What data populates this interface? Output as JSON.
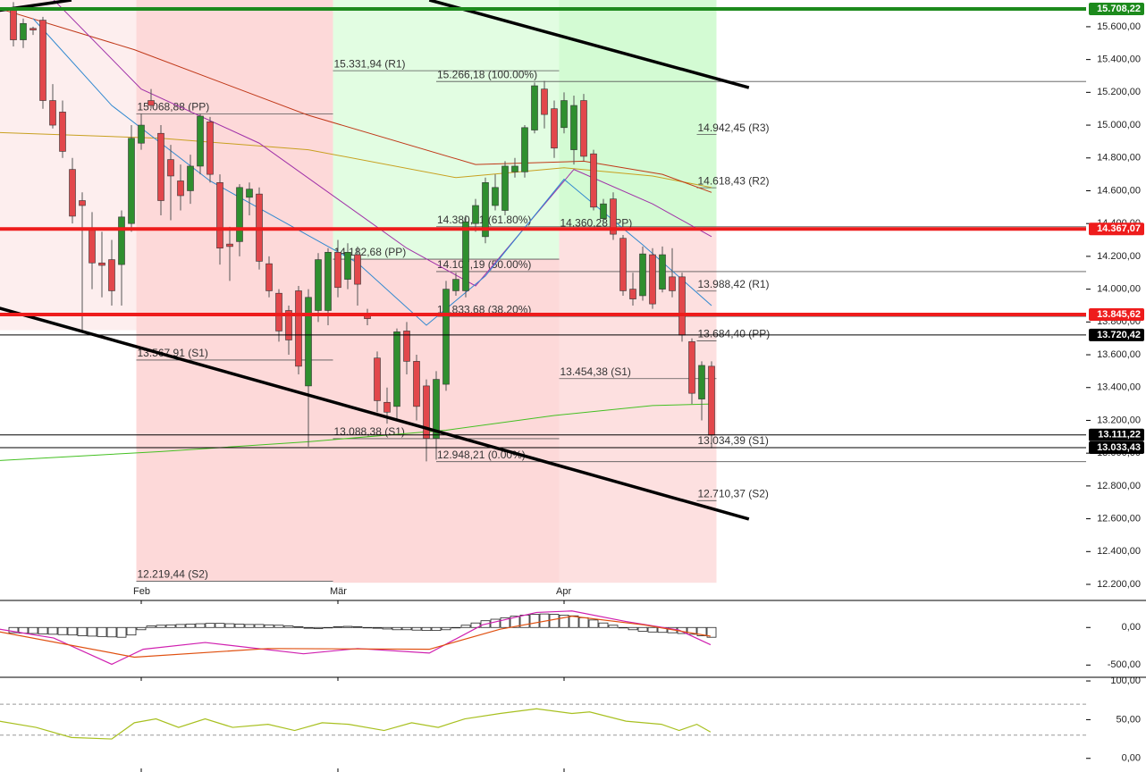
{
  "chart_data": [
    {
      "type": "candlestick",
      "categories": [
        null,
        null,
        null,
        null,
        null,
        null,
        null,
        null,
        null,
        null,
        null,
        null,
        null,
        "Feb",
        null,
        null,
        null,
        null,
        null,
        null,
        null,
        null,
        null,
        null,
        null,
        null,
        null,
        null,
        null,
        null,
        null,
        null,
        null,
        "Mär",
        null,
        null,
        null,
        null,
        null,
        null,
        null,
        null,
        null,
        null,
        null,
        null,
        null,
        null,
        null,
        null,
        null,
        null,
        null,
        null,
        null,
        null,
        "Apr",
        null,
        null,
        null,
        null,
        null,
        null,
        null,
        null,
        null,
        null,
        null,
        null,
        null,
        null,
        null
      ],
      "open": [
        15700,
        15520,
        15590,
        15640,
        15150,
        15080,
        14730,
        14540,
        14370,
        14160,
        14180,
        14150,
        14400,
        14890,
        15150,
        14950,
        14790,
        14660,
        14600,
        14750,
        15020,
        14650,
        14275,
        14290,
        14560,
        14580,
        14155,
        13975,
        13870,
        13990,
        13410,
        13870,
        13870,
        14225,
        14060,
        14210,
        13845,
        13580,
        13310,
        13285,
        13745,
        13560,
        13410,
        13090,
        13420,
        13990,
        13990,
        14400,
        14320,
        14510,
        14480,
        14715,
        14715,
        14970,
        15220,
        15100,
        14985,
        14850,
        15150,
        14825,
        14430,
        14550,
        14310,
        14000,
        13960,
        14210,
        14000,
        14075,
        14075,
        13680,
        13330,
        13530
      ],
      "high": [
        15750,
        15650,
        15600,
        15660,
        15250,
        15150,
        14800,
        14590,
        14470,
        14350,
        14300,
        14480,
        15000,
        15070,
        15220,
        15000,
        14880,
        14760,
        14820,
        15070,
        15050,
        14700,
        14380,
        14640,
        14650,
        14620,
        14200,
        14000,
        13900,
        14020,
        14000,
        14220,
        14250,
        14300,
        14280,
        14260,
        13880,
        13620,
        13400,
        13760,
        13800,
        13600,
        13450,
        13500,
        14050,
        14100,
        14450,
        14550,
        14680,
        14700,
        14780,
        14800,
        15000,
        15260,
        15270,
        15150,
        15200,
        15180,
        15190,
        14850,
        14550,
        14590,
        14330,
        14100,
        14260,
        14250,
        14260,
        14250,
        14100,
        13700,
        13560,
        13560
      ],
      "low": [
        15480,
        15470,
        15550,
        15100,
        14980,
        14800,
        14400,
        13750,
        14000,
        13950,
        13900,
        13900,
        14350,
        14850,
        15100,
        14450,
        14420,
        14480,
        14520,
        14700,
        14650,
        14150,
        14050,
        14200,
        14450,
        14120,
        13950,
        13680,
        13600,
        13480,
        13040,
        13800,
        13780,
        13950,
        14000,
        13900,
        13780,
        13250,
        13180,
        13200,
        13480,
        13200,
        12950,
        12960,
        13380,
        13960,
        13950,
        14350,
        14280,
        14480,
        14450,
        14680,
        14680,
        14950,
        14980,
        14800,
        14950,
        14760,
        14780,
        14480,
        14400,
        14300,
        13960,
        13900,
        13930,
        13880,
        13980,
        13950,
        13680,
        13300,
        13200,
        13030
      ],
      "close": [
        15520,
        15620,
        15580,
        15150,
        15000,
        14840,
        14445,
        14510,
        14160,
        14145,
        13990,
        14440,
        14920,
        15000,
        15120,
        14540,
        14690,
        14570,
        14750,
        15055,
        14700,
        14250,
        14260,
        14620,
        14610,
        14170,
        13990,
        13745,
        13690,
        13530,
        13950,
        14180,
        14225,
        14010,
        14225,
        14030,
        13820,
        13320,
        13250,
        13740,
        13560,
        13285,
        13090,
        13450,
        14000,
        14060,
        14410,
        14510,
        14650,
        14620,
        14750,
        14750,
        14985,
        15240,
        15065,
        14860,
        15150,
        15120,
        14810,
        14500,
        14520,
        14335,
        13990,
        13940,
        14215,
        13910,
        14210,
        13990,
        13720,
        13365,
        13535,
        13110
      ],
      "up_color": "#2f8f2f",
      "down_color": "#e2474b",
      "ylim": [
        12102,
        15763
      ],
      "yticks": [
        {
          "value": 12200,
          "label": "12.200,00"
        },
        {
          "value": 12400,
          "label": "12.400,00"
        },
        {
          "value": 12600,
          "label": "12.600,00"
        },
        {
          "value": 12800,
          "label": "12.800,00"
        },
        {
          "value": 13000,
          "label": "13.000,00"
        },
        {
          "value": 13200,
          "label": "13.200,00"
        },
        {
          "value": 13400,
          "label": "13.400,00"
        },
        {
          "value": 13600,
          "label": "13.600,00"
        },
        {
          "value": 13800,
          "label": "13.800,00"
        },
        {
          "value": 14000,
          "label": "14.000,00"
        },
        {
          "value": 14200,
          "label": "14.200,00"
        },
        {
          "value": 14400,
          "label": "14.400,00"
        },
        {
          "value": 14600,
          "label": "14.600,00"
        },
        {
          "value": 14800,
          "label": "14.800,00"
        },
        {
          "value": 15000,
          "label": "15.000,00"
        },
        {
          "value": 15200,
          "label": "15.200,00"
        },
        {
          "value": 15400,
          "label": "15.400,00"
        },
        {
          "value": 15600,
          "label": "15.600,00"
        }
      ],
      "zones": [
        {
          "x": [
            -1.5,
            12.5
          ],
          "lo": 13750,
          "hi": 15763,
          "color": "#fdeeee"
        },
        {
          "x": [
            12.5,
            32.5
          ],
          "lo": 12219.44,
          "hi": 15763,
          "color": "#fdd9d9"
        },
        {
          "x": [
            32.5,
            55.5
          ],
          "lo": 14182.68,
          "hi": 15763,
          "color": "#e2fde2"
        },
        {
          "x": [
            32.5,
            55.5
          ],
          "lo": 12210,
          "hi": 14182.68,
          "color": "#fdd9d9"
        },
        {
          "x": [
            55.5,
            71.5
          ],
          "lo": 14360.28,
          "hi": 15763,
          "color": "#d3fbd3"
        },
        {
          "x": [
            55.5,
            71.5
          ],
          "lo": 12210,
          "hi": 14360.28,
          "color": "#fde0e0"
        }
      ],
      "levels": [
        {
          "value": 15331.94,
          "label": "15.331,94 (R1)",
          "x": [
            32.5,
            55.5
          ]
        },
        {
          "value": 15266.18,
          "label": "15.266,18 (100.00%)",
          "x": [
            43,
            109.1
          ]
        },
        {
          "value": 15068.88,
          "label": "15.068,88 (PP)",
          "x": [
            12.5,
            32.5
          ]
        },
        {
          "value": 14942.45,
          "label": "14.942,45 (R3)",
          "x": [
            69.5,
            71.5
          ]
        },
        {
          "value": 14618.43,
          "label": "14.618,43 (R2)",
          "x": [
            69.5,
            71.5
          ]
        },
        {
          "value": 14380.71,
          "label": "14.380,71 (61.80%)",
          "x": [
            43,
            109.1
          ]
        },
        {
          "value": 14360.28,
          "label": "14.360,28 (PP)",
          "x": [
            55.5,
            71.5
          ]
        },
        {
          "value": 14182.68,
          "label": "14.182,68 (PP)",
          "x": [
            32.5,
            55.5
          ]
        },
        {
          "value": 14107.19,
          "label": "14.107,19 (50.00%)",
          "x": [
            43,
            109.1
          ]
        },
        {
          "value": 13988.42,
          "label": "13.988,42 (R1)",
          "x": [
            69.5,
            71.5
          ]
        },
        {
          "value": 13833.68,
          "label": "13.833,68 (38.20%)",
          "x": [
            43,
            109.1
          ]
        },
        {
          "value": 13684.4,
          "label": "13.684,40 (PP)",
          "x": [
            69.5,
            71.5
          ]
        },
        {
          "value": 13567.91,
          "label": "13.567,91 (S1)",
          "x": [
            12.5,
            32.5
          ]
        },
        {
          "value": 13454.38,
          "label": "13.454,38 (S1)",
          "x": [
            55.5,
            71.5
          ]
        },
        {
          "value": 13088.38,
          "label": "13.088,38 (S1)",
          "x": [
            32.5,
            55.5
          ]
        },
        {
          "value": 13034.39,
          "label": "13.034,39 (S1)",
          "x": [
            69.5,
            71.5
          ]
        },
        {
          "value": 12948.21,
          "label": "12.948,21 (0.00%)",
          "x": [
            43,
            109.1
          ]
        },
        {
          "value": 12710.37,
          "label": "12.710,37 (S2)",
          "x": [
            69.5,
            71.5
          ]
        },
        {
          "value": 12219.44,
          "label": "12.219,44 (S2)",
          "x": [
            12.5,
            32.5
          ]
        }
      ],
      "markers": [
        {
          "value": 15708.22,
          "label": "15.708,22",
          "color": "#1c8a1c"
        },
        {
          "value": 14367.07,
          "label": "14.367,07",
          "color": "#ee1c1c"
        },
        {
          "value": 13845.62,
          "label": "13.845,62",
          "color": "#ee1c1c"
        },
        {
          "value": 13720.42,
          "label": "13.720,42",
          "color": "#000000"
        },
        {
          "value": 13111.22,
          "label": "13.111,22",
          "color": "#000000"
        },
        {
          "value": 13033.43,
          "label": "13.033,43",
          "color": "#000000"
        }
      ],
      "trendlines": [
        {
          "x": [
            42.3,
            74.8
          ],
          "values": [
            15763,
            15229
          ]
        },
        {
          "x": [
            -1.4,
            74.8
          ],
          "values": [
            13884,
            12598
          ]
        },
        {
          "x": [
            -1.4,
            5.9
          ],
          "values": [
            15700,
            15763
          ]
        }
      ],
      "overlays": [
        {
          "color": "#44c022",
          "x": [
            -1.4,
            15,
            30,
            44,
            55,
            65,
            71
          ],
          "values": [
            12955,
            13010,
            13070,
            13140,
            13230,
            13290,
            13300
          ]
        },
        {
          "color": "#c8a020",
          "x": [
            -1.4,
            15,
            30,
            45,
            56,
            65,
            71
          ],
          "values": [
            14955,
            14920,
            14850,
            14680,
            14740,
            14690,
            14620
          ]
        },
        {
          "color": "#c03818",
          "x": [
            -1.4,
            12.3,
            30,
            47,
            58,
            66,
            71
          ],
          "values": [
            15710,
            15460,
            15060,
            14760,
            14780,
            14700,
            14590
          ]
        },
        {
          "color": "#a030a8",
          "x": [
            4,
            13,
            25,
            40,
            47,
            57,
            65,
            71
          ],
          "values": [
            15770,
            15220,
            14890,
            14250,
            14020,
            14730,
            14520,
            14320
          ]
        },
        {
          "color": "#3088d0",
          "x": [
            2,
            10,
            20,
            35,
            42,
            48,
            56,
            64,
            71
          ],
          "values": [
            15650,
            15120,
            14660,
            14160,
            13780,
            14080,
            14670,
            14270,
            13900
          ]
        }
      ]
    },
    {
      "type": "bar",
      "values": [
        -70,
        -75,
        -80,
        -85,
        -90,
        -95,
        -100,
        -110,
        -115,
        -120,
        -125,
        -130,
        -100,
        -30,
        20,
        30,
        35,
        40,
        45,
        50,
        55,
        55,
        50,
        45,
        40,
        40,
        35,
        30,
        20,
        10,
        -10,
        -15,
        -5,
        10,
        15,
        10,
        0,
        -10,
        -20,
        -30,
        -30,
        -35,
        -40,
        -40,
        -30,
        0,
        30,
        60,
        90,
        110,
        130,
        150,
        165,
        175,
        180,
        175,
        165,
        155,
        130,
        100,
        60,
        30,
        0,
        -30,
        -50,
        -60,
        -65,
        -70,
        -80,
        -90,
        -110,
        -130
      ],
      "ylim": [
        -663,
        360
      ],
      "yticks": [
        {
          "value": -500,
          "label": "-500,00"
        },
        {
          "value": 0,
          "label": "0,00"
        }
      ],
      "series": [
        {
          "color": "#d020b0",
          "x": [
            -1.4,
            4.1,
            10,
            13.2,
            19.5,
            29.5,
            35,
            42.3,
            47.7,
            53.2,
            56.8,
            62.3,
            67.7,
            70.9
          ],
          "values": [
            -23,
            -140,
            -490,
            -290,
            -200,
            -350,
            -280,
            -340,
            35,
            200,
            220,
            80,
            -35,
            -230
          ]
        },
        {
          "color": "#e05010",
          "x": [
            -1.4,
            12.3,
            25.9,
            42.3,
            49.5,
            56.8,
            64.1,
            70.9
          ],
          "values": [
            -58,
            -395,
            -280,
            -290,
            -23,
            150,
            35,
            -116
          ]
        }
      ]
    },
    {
      "type": "line",
      "ylim": [
        -17.6,
        104.7
      ],
      "yticks": [
        {
          "value": 0,
          "label": "0,00"
        },
        {
          "value": 50,
          "label": "50,00"
        },
        {
          "value": 100,
          "label": "100,00"
        }
      ],
      "reference_lines": [
        70,
        30
      ],
      "series": [
        {
          "color": "#a8c020",
          "x": [
            -1.4,
            2.3,
            5.9,
            10,
            12.3,
            14.5,
            16.8,
            19.5,
            22.3,
            25.9,
            28.6,
            31.4,
            34.1,
            37.7,
            40.5,
            43.2,
            45.9,
            49.5,
            53.2,
            56.8,
            58.6,
            62.3,
            65.9,
            67.7,
            69.5,
            70.9
          ],
          "values": [
            48,
            40,
            27,
            25,
            46,
            51,
            40,
            51,
            40,
            44,
            36,
            46,
            44,
            36,
            46,
            40,
            51,
            58,
            64,
            58,
            60,
            48,
            44,
            36,
            44,
            34
          ]
        }
      ]
    }
  ]
}
